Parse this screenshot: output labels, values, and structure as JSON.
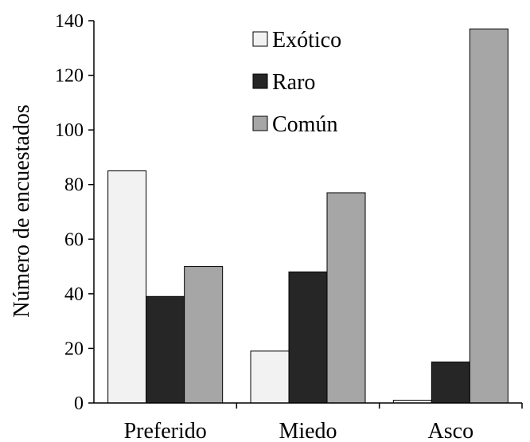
{
  "chart_data": {
    "type": "bar",
    "categories": [
      "Preferido",
      "Miedo",
      "Asco"
    ],
    "series": [
      {
        "name": "Exótico",
        "values": [
          85,
          19,
          1
        ],
        "color": "#f2f2f2"
      },
      {
        "name": "Raro",
        "values": [
          39,
          48,
          15
        ],
        "color": "#262626"
      },
      {
        "name": "Común",
        "values": [
          50,
          77,
          137
        ],
        "color": "#a6a6a6"
      }
    ],
    "ylabel": "Número de encuestados",
    "xlabel": "",
    "ylim": [
      0,
      140
    ],
    "yticks": [
      0,
      20,
      40,
      60,
      80,
      100,
      120,
      140
    ],
    "legend_position": "top-center",
    "grid": false
  }
}
